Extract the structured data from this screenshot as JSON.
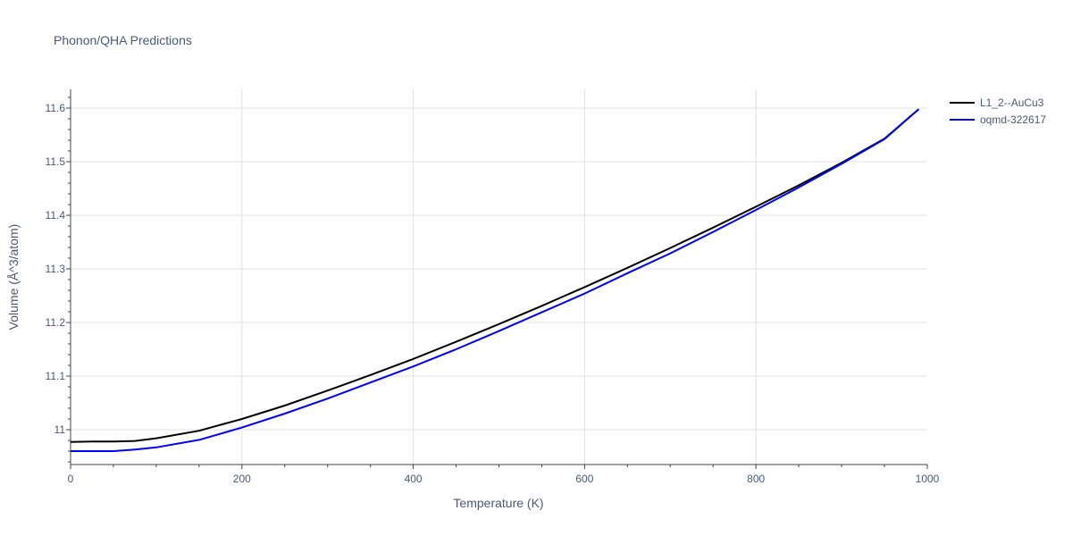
{
  "chart_data": {
    "type": "line",
    "title": "Phonon/QHA Predictions",
    "xlabel": "Temperature (K)",
    "ylabel": "Volume (Å^3/atom)",
    "xlim": [
      0,
      1000
    ],
    "ylim": [
      10.935,
      11.635
    ],
    "x_ticks": [
      0,
      200,
      400,
      600,
      800,
      1000
    ],
    "x_tick_labels": [
      "0",
      "200",
      "400",
      "600",
      "800",
      "1000"
    ],
    "y_ticks": [
      11.0,
      11.1,
      11.2,
      11.3,
      11.4,
      11.5,
      11.6
    ],
    "y_tick_labels": [
      "11",
      "11.1",
      "11.2",
      "11.3",
      "11.4",
      "11.5",
      "11.6"
    ],
    "grid": true,
    "legend_position": "top-right",
    "series": [
      {
        "name": "L1_2--AuCu3",
        "color": "#000000",
        "x": [
          0,
          25,
          50,
          75,
          100,
          150,
          200,
          250,
          300,
          350,
          400,
          450,
          500,
          550,
          600,
          650,
          700,
          750,
          800,
          850,
          900,
          950,
          990
        ],
        "y": [
          10.977,
          10.978,
          10.978,
          10.979,
          10.984,
          10.998,
          11.02,
          11.045,
          11.073,
          11.102,
          11.132,
          11.164,
          11.197,
          11.231,
          11.266,
          11.302,
          11.339,
          11.377,
          11.416,
          11.456,
          11.498,
          11.543,
          11.598
        ]
      },
      {
        "name": "oqmd-322617",
        "color": "#0000ff",
        "x": [
          0,
          25,
          50,
          75,
          100,
          150,
          200,
          250,
          300,
          350,
          400,
          450,
          500,
          550,
          600,
          650,
          700,
          750,
          800,
          850,
          900,
          950,
          990
        ],
        "y": [
          10.96,
          10.96,
          10.96,
          10.963,
          10.967,
          10.981,
          11.004,
          11.03,
          11.058,
          11.088,
          11.118,
          11.15,
          11.184,
          11.219,
          11.254,
          11.292,
          11.329,
          11.369,
          11.41,
          11.452,
          11.496,
          11.542,
          11.598
        ]
      }
    ]
  }
}
